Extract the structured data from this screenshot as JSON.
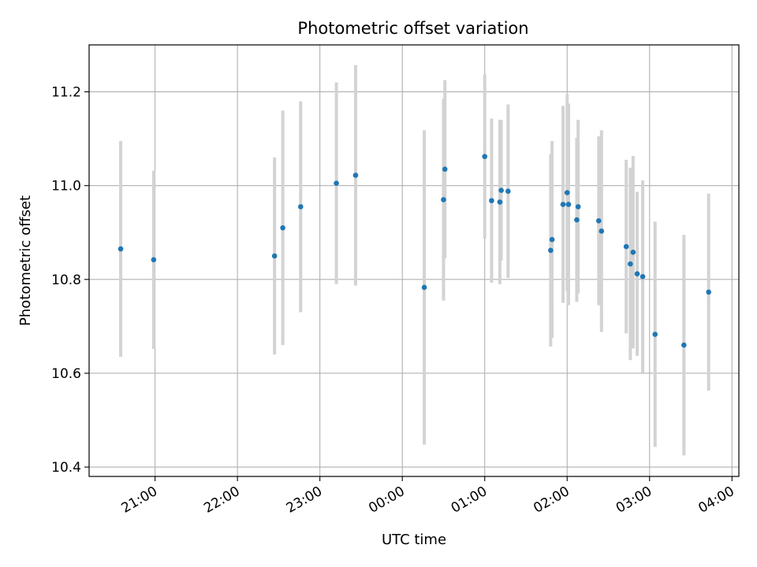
{
  "chart_data": {
    "type": "scatter",
    "title": "Photometric offset variation",
    "xlabel": "UTC time",
    "ylabel": "Photometric offset",
    "x_unit": "hours",
    "xlim": [
      "20:12",
      "04:05"
    ],
    "ylim": [
      10.38,
      11.3
    ],
    "xticks": [
      "21:00",
      "22:00",
      "23:00",
      "00:00",
      "01:00",
      "02:00",
      "03:00",
      "04:00"
    ],
    "yticks": [
      "10.4",
      "10.6",
      "10.8",
      "11.0",
      "11.2"
    ],
    "grid": true,
    "colors": {
      "point": "#1f77b4",
      "errorbar": "#d3d3d3",
      "grid": "#b0b0b0"
    },
    "points": [
      {
        "x": "20:35",
        "y": 10.865,
        "err": 0.23
      },
      {
        "x": "20:59",
        "y": 10.842,
        "err": 0.19
      },
      {
        "x": "22:27",
        "y": 10.85,
        "err": 0.21
      },
      {
        "x": "22:33",
        "y": 10.91,
        "err": 0.25
      },
      {
        "x": "22:46",
        "y": 10.955,
        "err": 0.225
      },
      {
        "x": "23:12",
        "y": 11.005,
        "err": 0.215
      },
      {
        "x": "23:26",
        "y": 11.022,
        "err": 0.235
      },
      {
        "x": "00:16",
        "y": 10.783,
        "err": 0.335
      },
      {
        "x": "00:30",
        "y": 10.97,
        "err": 0.215
      },
      {
        "x": "00:31",
        "y": 11.035,
        "err": 0.19
      },
      {
        "x": "01:00",
        "y": 11.062,
        "err": 0.175
      },
      {
        "x": "01:05",
        "y": 10.968,
        "err": 0.175
      },
      {
        "x": "01:11",
        "y": 10.965,
        "err": 0.175
      },
      {
        "x": "01:12",
        "y": 10.99,
        "err": 0.15
      },
      {
        "x": "01:17",
        "y": 10.988,
        "err": 0.185
      },
      {
        "x": "01:48",
        "y": 10.862,
        "err": 0.205
      },
      {
        "x": "01:49",
        "y": 10.885,
        "err": 0.21
      },
      {
        "x": "01:57",
        "y": 10.96,
        "err": 0.21
      },
      {
        "x": "02:00",
        "y": 10.985,
        "err": 0.21
      },
      {
        "x": "02:01",
        "y": 10.96,
        "err": 0.215
      },
      {
        "x": "02:07",
        "y": 10.927,
        "err": 0.175
      },
      {
        "x": "02:08",
        "y": 10.955,
        "err": 0.185
      },
      {
        "x": "02:23",
        "y": 10.925,
        "err": 0.18
      },
      {
        "x": "02:25",
        "y": 10.903,
        "err": 0.215
      },
      {
        "x": "02:43",
        "y": 10.87,
        "err": 0.185
      },
      {
        "x": "02:46",
        "y": 10.833,
        "err": 0.205
      },
      {
        "x": "02:48",
        "y": 10.858,
        "err": 0.205
      },
      {
        "x": "02:51",
        "y": 10.812,
        "err": 0.175
      },
      {
        "x": "02:55",
        "y": 10.806,
        "err": 0.205
      },
      {
        "x": "03:04",
        "y": 10.683,
        "err": 0.24
      },
      {
        "x": "03:25",
        "y": 10.66,
        "err": 0.235
      },
      {
        "x": "03:43",
        "y": 10.773,
        "err": 0.21
      }
    ]
  }
}
